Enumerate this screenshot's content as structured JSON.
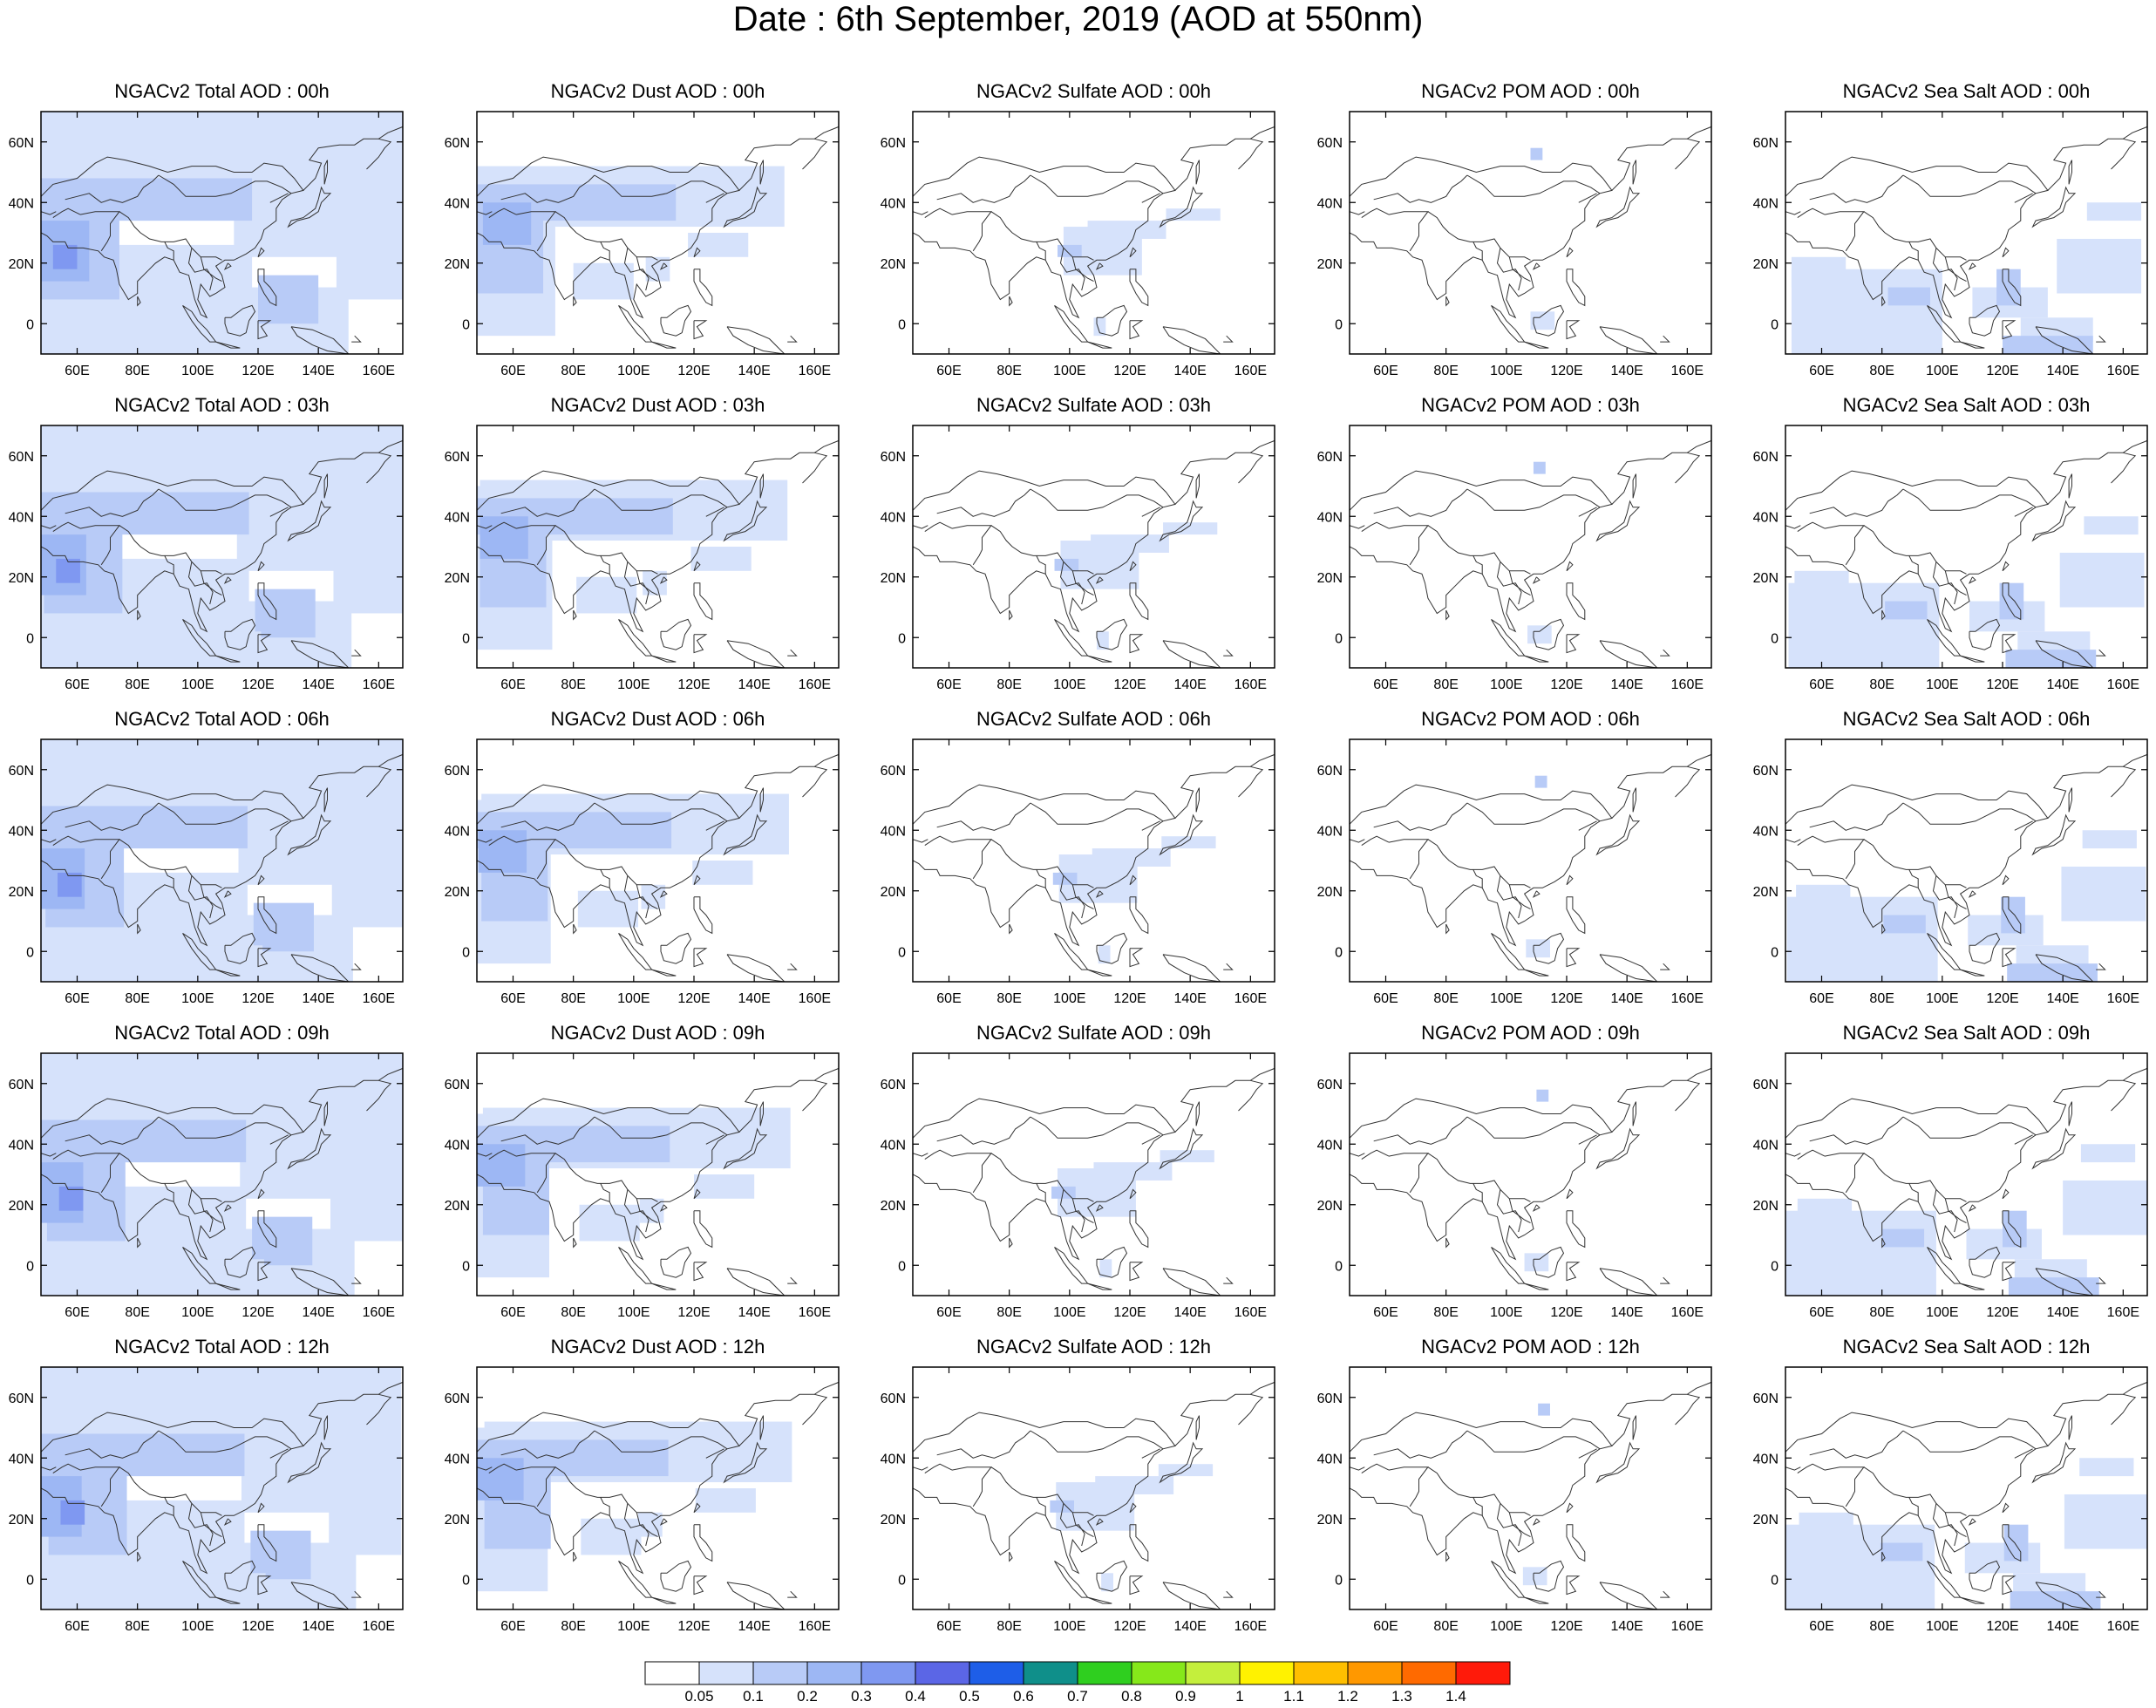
{
  "title": "Date : 6th September, 2019 (AOD at 550nm)",
  "map_axes": {
    "lon_labels": [
      "60E",
      "80E",
      "100E",
      "120E",
      "140E",
      "160E"
    ],
    "lat_labels": [
      "60N",
      "40N",
      "20N",
      "0"
    ]
  },
  "panels": [
    {
      "species": "Total",
      "hour": "00h",
      "title": "NGACv2 Total AOD : 00h"
    },
    {
      "species": "Dust",
      "hour": "00h",
      "title": "NGACv2 Dust AOD : 00h"
    },
    {
      "species": "Sulfate",
      "hour": "00h",
      "title": "NGACv2 Sulfate AOD : 00h"
    },
    {
      "species": "POM",
      "hour": "00h",
      "title": "NGACv2 POM AOD : 00h"
    },
    {
      "species": "Sea Salt",
      "hour": "00h",
      "title": "NGACv2 Sea Salt AOD : 00h"
    },
    {
      "species": "Total",
      "hour": "03h",
      "title": "NGACv2 Total AOD : 03h"
    },
    {
      "species": "Dust",
      "hour": "03h",
      "title": "NGACv2 Dust AOD : 03h"
    },
    {
      "species": "Sulfate",
      "hour": "03h",
      "title": "NGACv2 Sulfate AOD : 03h"
    },
    {
      "species": "POM",
      "hour": "03h",
      "title": "NGACv2 POM AOD : 03h"
    },
    {
      "species": "Sea Salt",
      "hour": "03h",
      "title": "NGACv2 Sea Salt AOD : 03h"
    },
    {
      "species": "Total",
      "hour": "06h",
      "title": "NGACv2 Total AOD : 06h"
    },
    {
      "species": "Dust",
      "hour": "06h",
      "title": "NGACv2 Dust AOD : 06h"
    },
    {
      "species": "Sulfate",
      "hour": "06h",
      "title": "NGACv2 Sulfate AOD : 06h"
    },
    {
      "species": "POM",
      "hour": "06h",
      "title": "NGACv2 POM AOD : 06h"
    },
    {
      "species": "Sea Salt",
      "hour": "06h",
      "title": "NGACv2 Sea Salt AOD : 06h"
    },
    {
      "species": "Total",
      "hour": "09h",
      "title": "NGACv2 Total AOD : 09h"
    },
    {
      "species": "Dust",
      "hour": "09h",
      "title": "NGACv2 Dust AOD : 09h"
    },
    {
      "species": "Sulfate",
      "hour": "09h",
      "title": "NGACv2 Sulfate AOD : 09h"
    },
    {
      "species": "POM",
      "hour": "09h",
      "title": "NGACv2 POM AOD : 09h"
    },
    {
      "species": "Sea Salt",
      "hour": "09h",
      "title": "NGACv2 Sea Salt  AOD : 09h"
    },
    {
      "species": "Total",
      "hour": "12h",
      "title": "NGACv2 Total AOD  : 12h"
    },
    {
      "species": "Dust",
      "hour": "12h",
      "title": "NGACv2 Dust AOD : 12h"
    },
    {
      "species": "Sulfate",
      "hour": "12h",
      "title": "NGACv2 Sulfate AOD : 12h"
    },
    {
      "species": "POM",
      "hour": "12h",
      "title": "NGACv2 POM  AOD : 12h"
    },
    {
      "species": "Sea Salt",
      "hour": "12h",
      "title": "NGACv2 Sea Salt  AOD : 12h"
    }
  ],
  "colorbar": {
    "labels": [
      "0.05",
      "0.1",
      "0.2",
      "0.3",
      "0.4",
      "0.5",
      "0.6",
      "0.7",
      "0.8",
      "0.9",
      "1",
      "1.1",
      "1.2",
      "1.3",
      "1.4"
    ],
    "colors": [
      "#ffffff",
      "#d6e2fb",
      "#b8cbf7",
      "#9db7f4",
      "#7f98f1",
      "#5b66e6",
      "#1e5ee8",
      "#0f8f8a",
      "#2fcf1f",
      "#86e81a",
      "#c4ef3c",
      "#fff200",
      "#ffbf00",
      "#ff9800",
      "#ff6a00",
      "#ff1a0a"
    ]
  }
}
